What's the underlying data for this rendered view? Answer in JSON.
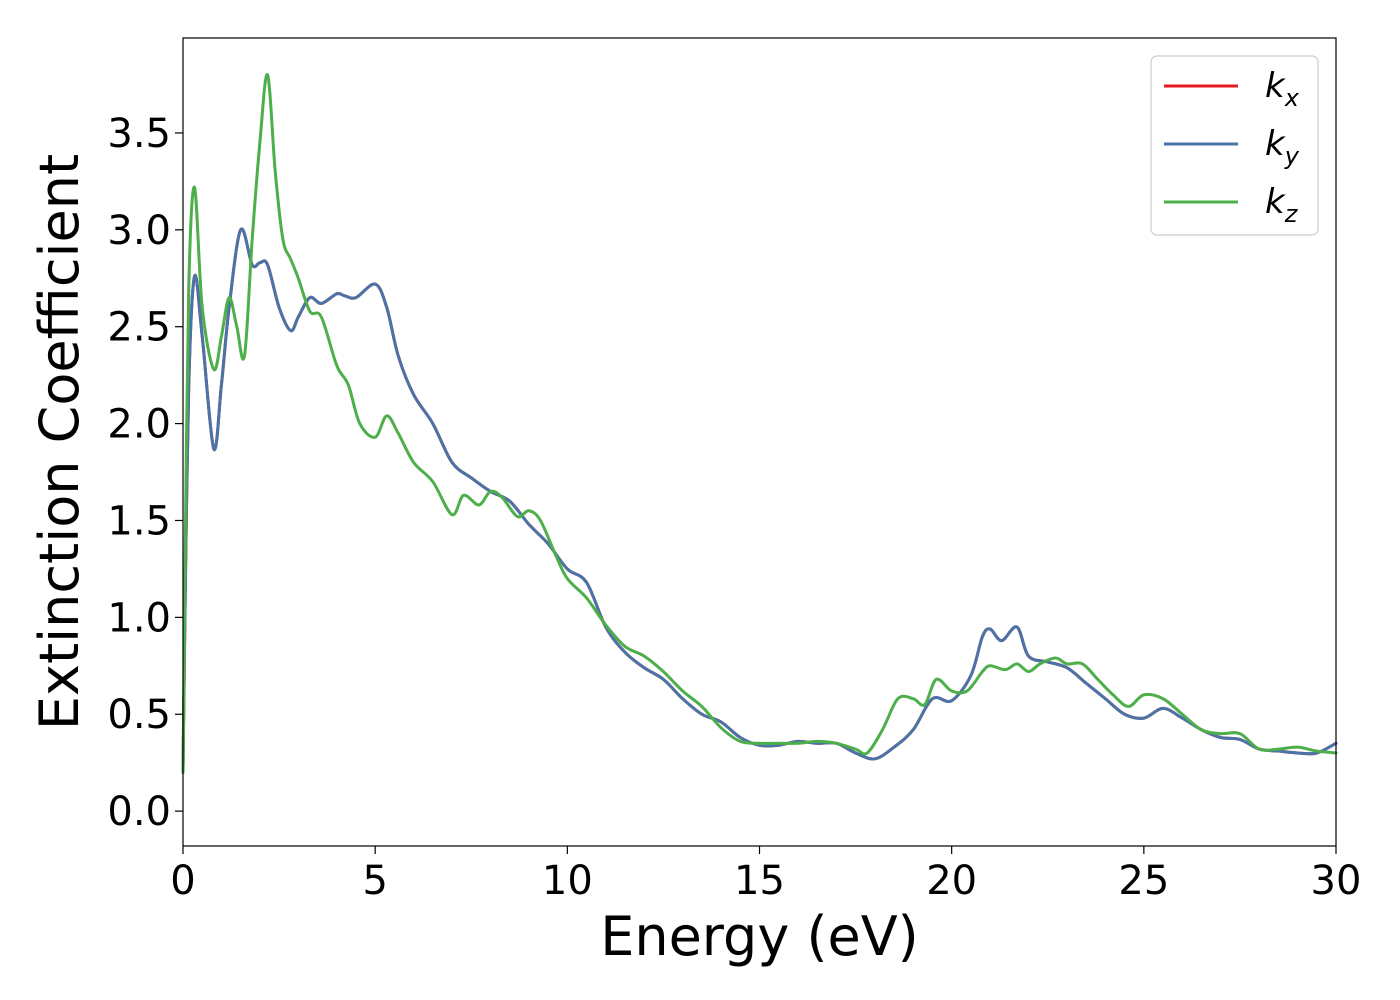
{
  "chart_data": {
    "type": "line",
    "xlabel": "Energy (eV)",
    "ylabel": "Extinction Coefficient",
    "xlim": [
      0,
      30
    ],
    "ylim": [
      -0.18,
      3.99
    ],
    "xticks": [
      "0",
      "5",
      "10",
      "15",
      "20",
      "25",
      "30"
    ],
    "yticks": [
      "0.0",
      "0.5",
      "1.0",
      "1.5",
      "2.0",
      "2.5",
      "3.0",
      "3.5"
    ],
    "grid": false,
    "legend_position": "top-right",
    "series": [
      {
        "name": "k_x",
        "legend_main": "k",
        "legend_sub": "x",
        "color": "#e41a1c",
        "x": [
          0,
          0.05,
          0.15,
          0.3,
          0.5,
          0.8,
          1.0,
          1.2,
          1.5,
          1.8,
          2.0,
          2.2,
          2.5,
          2.8,
          3.0,
          3.3,
          3.6,
          4.0,
          4.2,
          4.5,
          5.0,
          5.3,
          5.6,
          6.0,
          6.5,
          7.0,
          7.5,
          8.0,
          8.5,
          9.0,
          9.5,
          10.0,
          10.5,
          11.0,
          11.5,
          12.0,
          12.5,
          13.0,
          13.5,
          14.0,
          14.5,
          15.0,
          15.5,
          16.0,
          16.5,
          17.0,
          17.5,
          18.0,
          18.5,
          19.0,
          19.5,
          20.0,
          20.5,
          20.8,
          21.0,
          21.3,
          21.7,
          22.0,
          22.5,
          23.0,
          23.5,
          24.0,
          24.5,
          25.0,
          25.5,
          26.0,
          26.5,
          27.0,
          27.5,
          28.0,
          28.5,
          29.0,
          29.5,
          30.0
        ],
        "y": [
          0.2,
          1.0,
          2.2,
          2.76,
          2.45,
          1.87,
          2.2,
          2.6,
          3.0,
          2.82,
          2.83,
          2.82,
          2.6,
          2.48,
          2.55,
          2.65,
          2.62,
          2.67,
          2.66,
          2.65,
          2.72,
          2.6,
          2.35,
          2.15,
          2.0,
          1.8,
          1.72,
          1.65,
          1.6,
          1.48,
          1.38,
          1.25,
          1.18,
          0.95,
          0.82,
          0.74,
          0.68,
          0.58,
          0.5,
          0.46,
          0.38,
          0.34,
          0.34,
          0.36,
          0.35,
          0.35,
          0.3,
          0.27,
          0.33,
          0.42,
          0.58,
          0.57,
          0.7,
          0.9,
          0.94,
          0.88,
          0.95,
          0.8,
          0.77,
          0.74,
          0.66,
          0.58,
          0.5,
          0.48,
          0.53,
          0.48,
          0.42,
          0.38,
          0.37,
          0.32,
          0.31,
          0.3,
          0.3,
          0.35
        ]
      },
      {
        "name": "k_y",
        "legend_main": "k",
        "legend_sub": "y",
        "color": "#4a74a8",
        "x": [
          0,
          0.05,
          0.15,
          0.3,
          0.5,
          0.8,
          1.0,
          1.2,
          1.5,
          1.8,
          2.0,
          2.2,
          2.5,
          2.8,
          3.0,
          3.3,
          3.6,
          4.0,
          4.2,
          4.5,
          5.0,
          5.3,
          5.6,
          6.0,
          6.5,
          7.0,
          7.5,
          8.0,
          8.5,
          9.0,
          9.5,
          10.0,
          10.5,
          11.0,
          11.5,
          12.0,
          12.5,
          13.0,
          13.5,
          14.0,
          14.5,
          15.0,
          15.5,
          16.0,
          16.5,
          17.0,
          17.5,
          18.0,
          18.5,
          19.0,
          19.5,
          20.0,
          20.5,
          20.8,
          21.0,
          21.3,
          21.7,
          22.0,
          22.5,
          23.0,
          23.5,
          24.0,
          24.5,
          25.0,
          25.5,
          26.0,
          26.5,
          27.0,
          27.5,
          28.0,
          28.5,
          29.0,
          29.5,
          30.0
        ],
        "y": [
          0.2,
          1.0,
          2.2,
          2.76,
          2.45,
          1.87,
          2.2,
          2.6,
          3.0,
          2.82,
          2.83,
          2.82,
          2.6,
          2.48,
          2.55,
          2.65,
          2.62,
          2.67,
          2.66,
          2.65,
          2.72,
          2.6,
          2.35,
          2.15,
          2.0,
          1.8,
          1.72,
          1.65,
          1.6,
          1.48,
          1.38,
          1.25,
          1.18,
          0.95,
          0.82,
          0.74,
          0.68,
          0.58,
          0.5,
          0.46,
          0.38,
          0.34,
          0.34,
          0.36,
          0.35,
          0.35,
          0.3,
          0.27,
          0.33,
          0.42,
          0.58,
          0.57,
          0.7,
          0.9,
          0.94,
          0.88,
          0.95,
          0.8,
          0.77,
          0.74,
          0.66,
          0.58,
          0.5,
          0.48,
          0.53,
          0.48,
          0.42,
          0.38,
          0.37,
          0.32,
          0.31,
          0.3,
          0.3,
          0.35
        ]
      },
      {
        "name": "k_z",
        "legend_main": "k",
        "legend_sub": "z",
        "color": "#4daf4a",
        "x": [
          0,
          0.05,
          0.15,
          0.3,
          0.5,
          0.8,
          1.0,
          1.2,
          1.4,
          1.6,
          1.8,
          2.0,
          2.2,
          2.4,
          2.6,
          2.8,
          3.0,
          3.3,
          3.6,
          4.0,
          4.3,
          4.6,
          5.0,
          5.3,
          5.6,
          6.0,
          6.5,
          7.0,
          7.3,
          7.7,
          8.0,
          8.3,
          8.7,
          9.0,
          9.3,
          9.7,
          10.0,
          10.5,
          11.0,
          11.5,
          12.0,
          12.5,
          13.0,
          13.5,
          14.0,
          14.5,
          15.0,
          15.5,
          16.0,
          16.5,
          17.0,
          17.5,
          17.8,
          18.2,
          18.6,
          19.0,
          19.3,
          19.6,
          20.0,
          20.4,
          20.8,
          21.0,
          21.4,
          21.7,
          22.0,
          22.3,
          22.7,
          23.0,
          23.4,
          23.8,
          24.2,
          24.6,
          25.0,
          25.5,
          26.0,
          26.5,
          27.0,
          27.5,
          28.0,
          28.5,
          29.0,
          29.5,
          30.0
        ],
        "y": [
          0.2,
          1.2,
          2.7,
          3.22,
          2.6,
          2.28,
          2.45,
          2.65,
          2.5,
          2.35,
          2.95,
          3.45,
          3.8,
          3.3,
          2.95,
          2.85,
          2.75,
          2.58,
          2.55,
          2.3,
          2.2,
          2.0,
          1.93,
          2.04,
          1.95,
          1.8,
          1.7,
          1.53,
          1.63,
          1.58,
          1.65,
          1.62,
          1.52,
          1.55,
          1.5,
          1.32,
          1.2,
          1.1,
          0.96,
          0.85,
          0.8,
          0.72,
          0.62,
          0.54,
          0.43,
          0.36,
          0.35,
          0.35,
          0.35,
          0.36,
          0.35,
          0.32,
          0.3,
          0.42,
          0.58,
          0.58,
          0.55,
          0.68,
          0.62,
          0.62,
          0.72,
          0.75,
          0.73,
          0.76,
          0.72,
          0.76,
          0.79,
          0.76,
          0.76,
          0.68,
          0.6,
          0.54,
          0.6,
          0.58,
          0.5,
          0.42,
          0.4,
          0.4,
          0.32,
          0.32,
          0.33,
          0.31,
          0.3
        ]
      }
    ]
  }
}
